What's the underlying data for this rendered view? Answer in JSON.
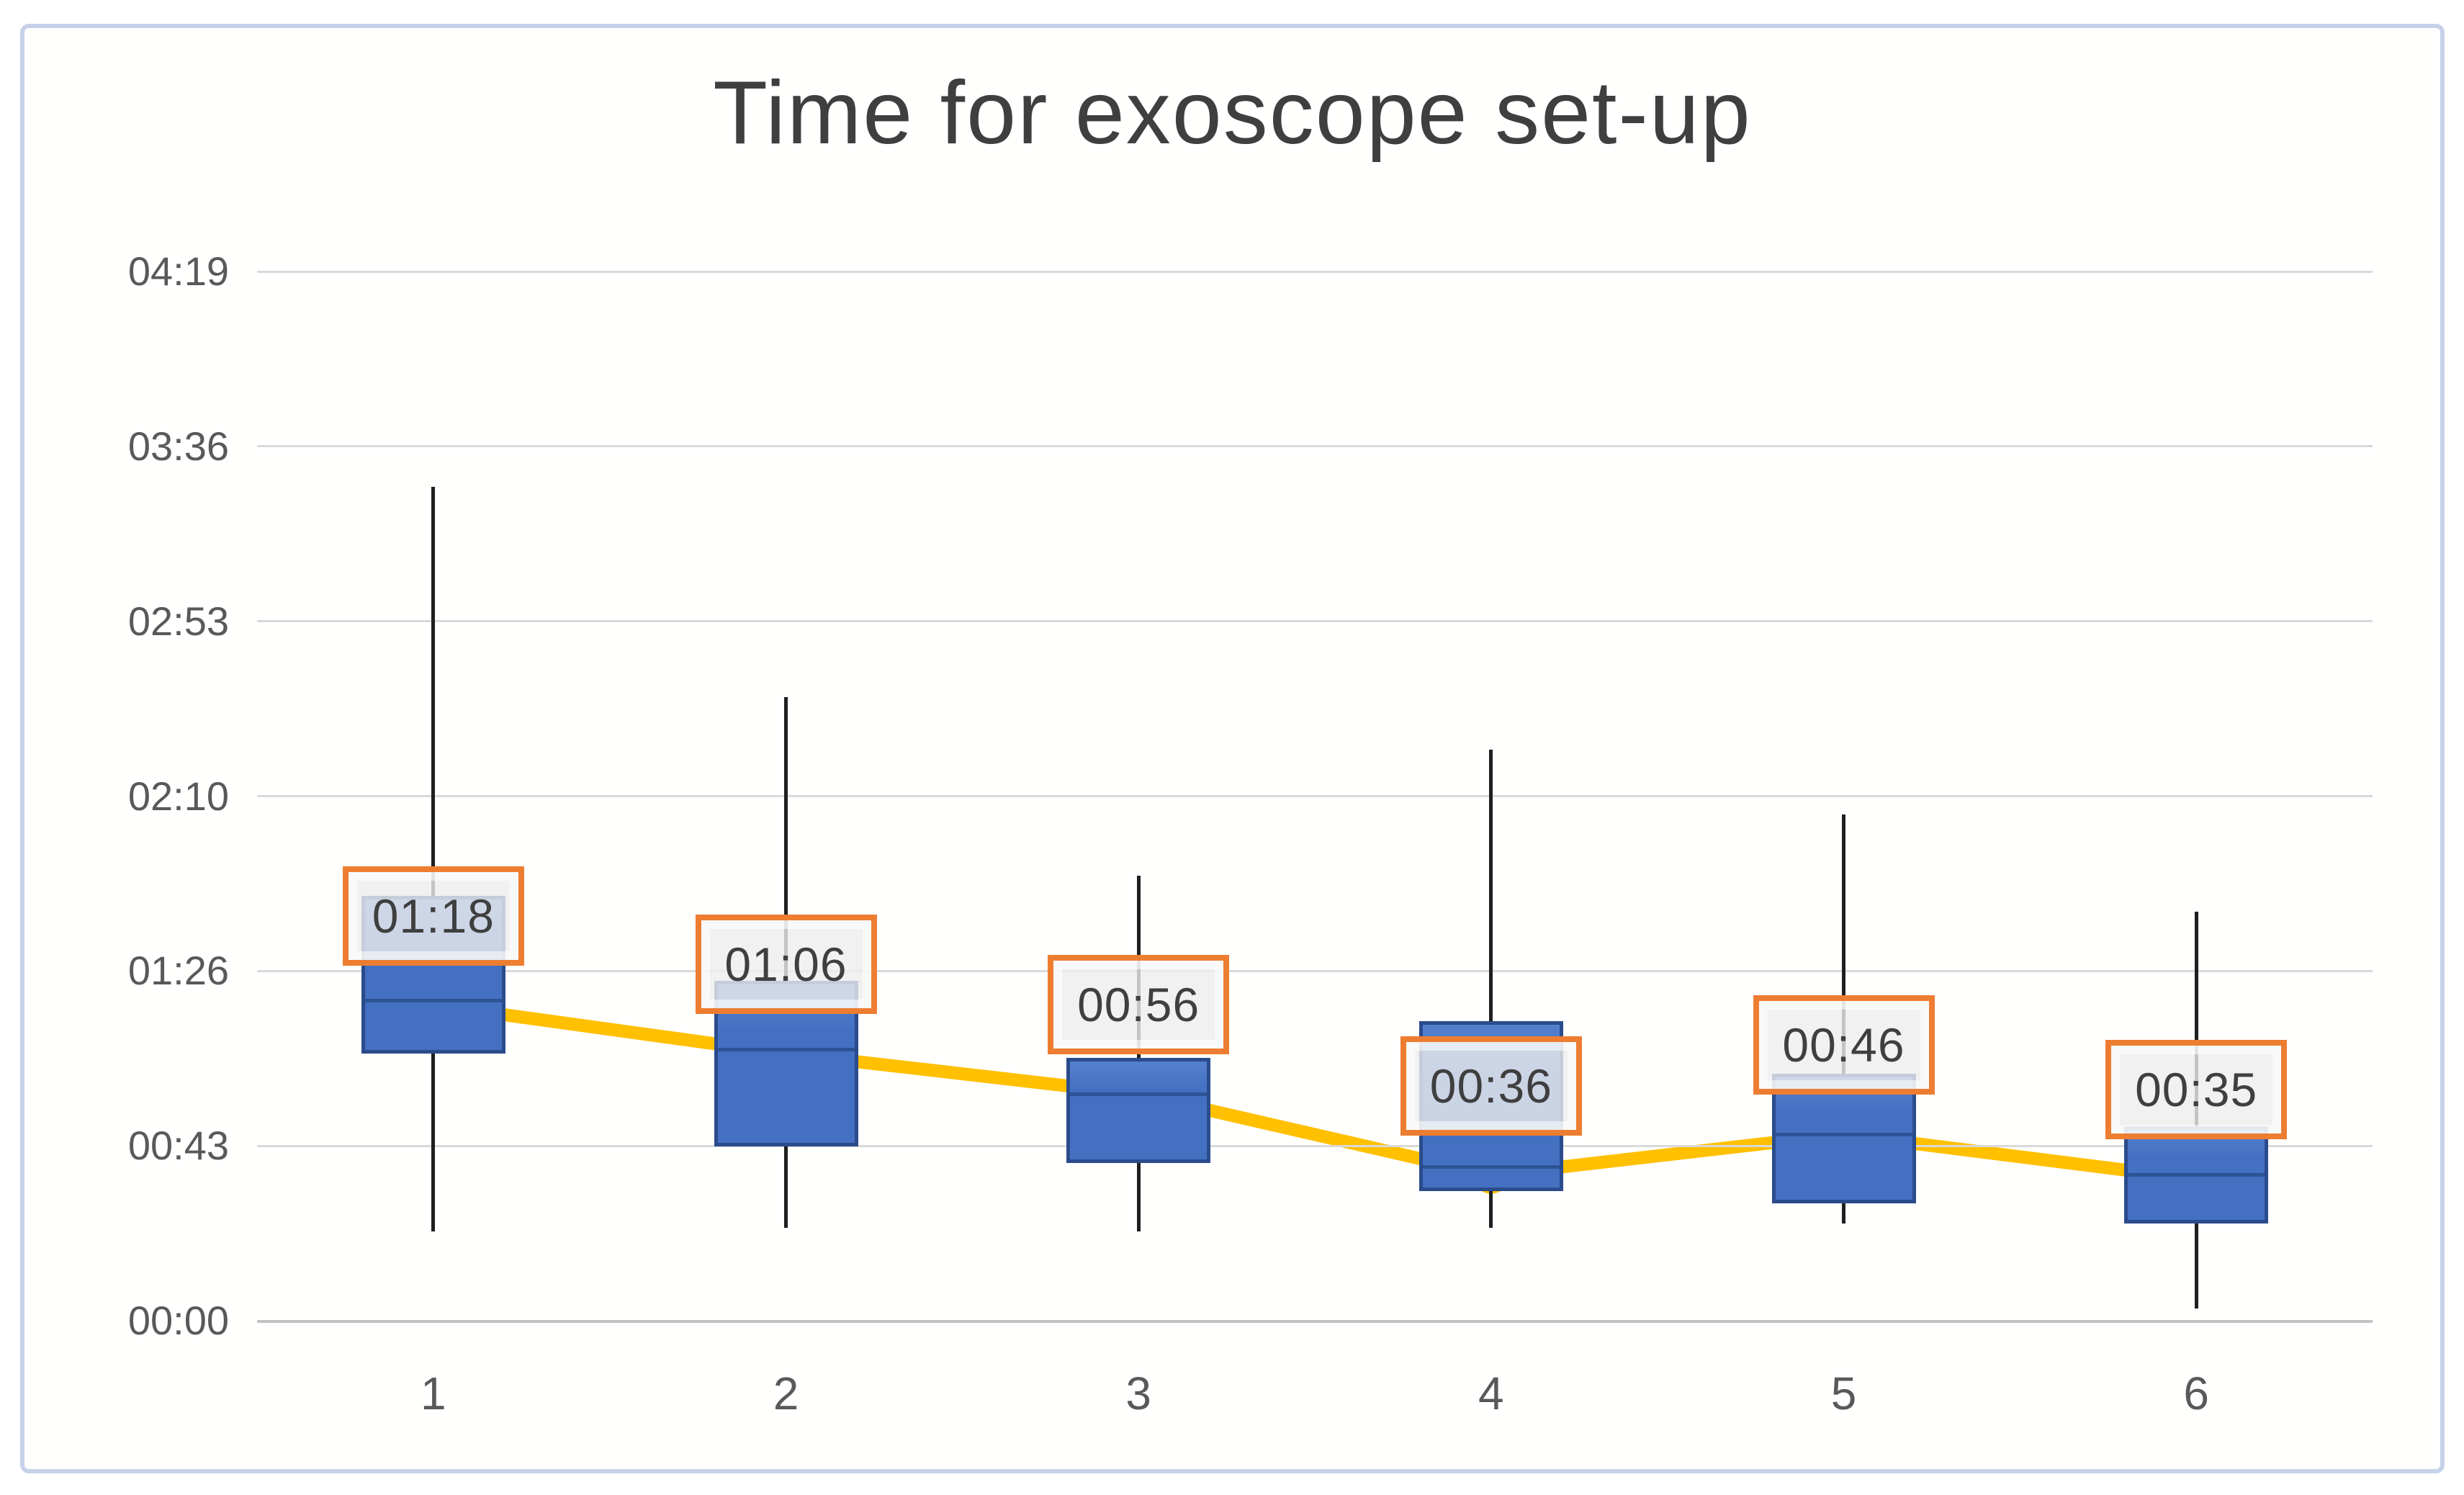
{
  "chart_data": {
    "type": "box-whisker-with-mean-line",
    "title": "Time for exoscope set-up",
    "xlabel": "",
    "ylabel": "",
    "time_format": "mm:ss",
    "grid": true,
    "legend": false,
    "categories": [
      "1",
      "2",
      "3",
      "4",
      "5",
      "6"
    ],
    "y_axis": {
      "min_seconds": 0,
      "max_seconds": 259.2,
      "ticks": [
        {
          "label": "00:00",
          "seconds": 0
        },
        {
          "label": "00:43",
          "seconds": 43.2
        },
        {
          "label": "01:26",
          "seconds": 86.4
        },
        {
          "label": "02:10",
          "seconds": 129.6
        },
        {
          "label": "02:53",
          "seconds": 172.8
        },
        {
          "label": "03:36",
          "seconds": 216
        },
        {
          "label": "04:19",
          "seconds": 259.2
        }
      ]
    },
    "boxes": [
      {
        "category": "1",
        "whisker_low": "00:22",
        "q1": "01:06",
        "median": "01:19",
        "q3": "01:45",
        "whisker_high": "03:26",
        "sec": {
          "lo": 22,
          "q1": 66,
          "med": 79,
          "q3": 105,
          "hi": 206
        }
      },
      {
        "category": "2",
        "whisker_low": "00:23",
        "q1": "00:43",
        "median": "01:07",
        "q3": "01:24",
        "whisker_high": "02:34",
        "sec": {
          "lo": 23,
          "q1": 43,
          "med": 67,
          "q3": 84,
          "hi": 154
        }
      },
      {
        "category": "3",
        "whisker_low": "00:22",
        "q1": "00:39",
        "median": "00:56",
        "q3": "01:05",
        "whisker_high": "01:50",
        "sec": {
          "lo": 22,
          "q1": 39,
          "med": 56,
          "q3": 65,
          "hi": 110
        }
      },
      {
        "category": "4",
        "whisker_low": "00:23",
        "q1": "00:32",
        "median": "00:38",
        "q3": "01:14",
        "whisker_high": "02:21",
        "sec": {
          "lo": 23,
          "q1": 32,
          "med": 38,
          "q3": 74,
          "hi": 141
        }
      },
      {
        "category": "5",
        "whisker_low": "00:24",
        "q1": "00:29",
        "median": "00:46",
        "q3": "01:01",
        "whisker_high": "02:05",
        "sec": {
          "lo": 24,
          "q1": 29,
          "med": 46,
          "q3": 61,
          "hi": 125
        }
      },
      {
        "category": "6",
        "whisker_low": "00:03",
        "q1": "00:24",
        "median": "00:36",
        "q3": "00:48",
        "whisker_high": "01:41",
        "sec": {
          "lo": 3,
          "q1": 24,
          "med": 36,
          "q3": 48,
          "hi": 101
        }
      }
    ],
    "mean_line": {
      "name": "mean-setup-time",
      "labels": [
        "01:18",
        "01:06",
        "00:56",
        "00:36",
        "00:46",
        "00:35"
      ],
      "seconds": [
        78,
        66,
        56,
        36,
        46,
        35
      ]
    },
    "colors": {
      "box_fill": "#4472C4",
      "box_border": "#2B4C8C",
      "median_line": "#2E5395",
      "whisker": "#1F1F1F",
      "mean_line": "#FFC000",
      "mean_marker": "#FFC000",
      "label_border": "#ED7D31",
      "label_fill": "#EEEEEE",
      "label_text": "#3F3F3F",
      "gridline": "#D9D9D9",
      "axis_line": "#C2C2C2",
      "tick_text": "#595959",
      "title_text": "#3F3F3F",
      "frame_border": "#C7D2EA"
    }
  }
}
